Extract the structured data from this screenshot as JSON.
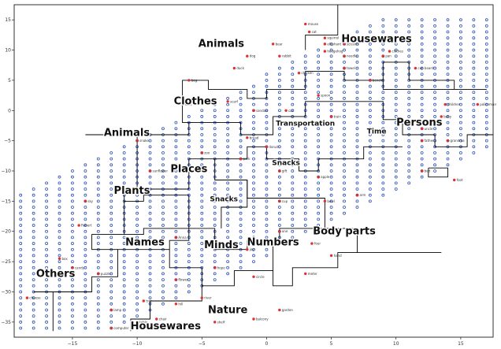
{
  "chart_data": {
    "type": "scatter",
    "xlim": [
      -19.5,
      17.5
    ],
    "ylim": [
      -37.5,
      17.5
    ],
    "x_ticks": [
      -15,
      -10,
      -5,
      0,
      5,
      10,
      15
    ],
    "y_ticks": [
      15,
      10,
      5,
      0,
      -5,
      -10,
      -15,
      -20,
      -25,
      -30,
      -35
    ],
    "grid": false,
    "colors": {
      "word": "#e03030",
      "grid_dot": "#2b4fb5",
      "boundary": "#000000"
    },
    "category_labels": [
      {
        "text": "Animals",
        "x": -3.5,
        "y": 10.5,
        "size": "large"
      },
      {
        "text": "Housewares",
        "x": 8.5,
        "y": 11.3,
        "size": "large"
      },
      {
        "text": "Clothes",
        "x": -5.5,
        "y": 1.0,
        "size": "large"
      },
      {
        "text": "Animals",
        "x": -10.8,
        "y": -4.2,
        "size": "large"
      },
      {
        "text": "Transportation",
        "x": 3.0,
        "y": -2.5,
        "size": "small"
      },
      {
        "text": "Persons",
        "x": 11.8,
        "y": -2.5,
        "size": "large"
      },
      {
        "text": "Time",
        "x": 8.5,
        "y": -3.8,
        "size": "small"
      },
      {
        "text": "Snacks",
        "x": 1.5,
        "y": -9.0,
        "size": "small"
      },
      {
        "text": "Places",
        "x": -6.0,
        "y": -10.2,
        "size": "large"
      },
      {
        "text": "Plants",
        "x": -10.4,
        "y": -13.8,
        "size": "large"
      },
      {
        "text": "Snacks",
        "x": -3.3,
        "y": -15.0,
        "size": "small"
      },
      {
        "text": "Body parts",
        "x": 6.0,
        "y": -20.5,
        "size": "large"
      },
      {
        "text": "Names",
        "x": -9.4,
        "y": -22.3,
        "size": "large"
      },
      {
        "text": "Minds",
        "x": -3.5,
        "y": -22.8,
        "size": "large"
      },
      {
        "text": "Numbers",
        "x": 0.5,
        "y": -22.3,
        "size": "large"
      },
      {
        "text": "Others",
        "x": -16.3,
        "y": -27.5,
        "size": "large"
      },
      {
        "text": "Nature",
        "x": -3.0,
        "y": -33.5,
        "size": "large"
      },
      {
        "text": "Housewares",
        "x": -7.8,
        "y": -36.2,
        "size": "large"
      }
    ],
    "words": [
      {
        "text": "mouse",
        "x": 3.0,
        "y": 14.3
      },
      {
        "text": "cat",
        "x": 3.3,
        "y": 13.0
      },
      {
        "text": "squirrel",
        "x": 4.5,
        "y": 12.0
      },
      {
        "text": "bear",
        "x": 0.5,
        "y": 11.0
      },
      {
        "text": "elephant",
        "x": 4.5,
        "y": 11.0
      },
      {
        "text": "scissors",
        "x": 6.0,
        "y": 11.0
      },
      {
        "text": "clothes",
        "x": 9.5,
        "y": 9.8
      },
      {
        "text": "dog",
        "x": -1.5,
        "y": 9.0
      },
      {
        "text": "rabbit",
        "x": 1.0,
        "y": 9.0
      },
      {
        "text": "hedgehog",
        "x": 4.5,
        "y": 9.8
      },
      {
        "text": "needle",
        "x": 6.0,
        "y": 9.0
      },
      {
        "text": "pan",
        "x": 9.0,
        "y": 9.0
      },
      {
        "text": "duck",
        "x": -2.5,
        "y": 7.0
      },
      {
        "text": "chicken",
        "x": 2.5,
        "y": 6.2
      },
      {
        "text": "towel",
        "x": 6.0,
        "y": 7.0
      },
      {
        "text": "cup board",
        "x": 11.5,
        "y": 7.0
      },
      {
        "text": "bag",
        "x": -6.0,
        "y": 5.0
      },
      {
        "text": "bench",
        "x": 8.0,
        "y": 5.0
      },
      {
        "text": "spoon",
        "x": 4.0,
        "y": 2.5
      },
      {
        "text": "scarf",
        "x": -3.0,
        "y": 1.5
      },
      {
        "text": "children",
        "x": 13.8,
        "y": 1.0
      },
      {
        "text": "policeman",
        "x": 16.3,
        "y": 1.0
      },
      {
        "text": "shirt",
        "x": -6.5,
        "y": 1.0
      },
      {
        "text": "sandals",
        "x": -1.0,
        "y": 0.0
      },
      {
        "text": "car",
        "x": 1.5,
        "y": 0.0
      },
      {
        "text": "train",
        "x": 5.0,
        "y": -1.0
      },
      {
        "text": "baby",
        "x": 13.5,
        "y": -1.0
      },
      {
        "text": "uncle",
        "x": 12.0,
        "y": -3.0
      },
      {
        "text": "father",
        "x": 12.0,
        "y": -5.0
      },
      {
        "text": "grandma",
        "x": 14.0,
        "y": -5.0
      },
      {
        "text": "snake",
        "x": -10.0,
        "y": -5.0
      },
      {
        "text": "donut",
        "x": 0.0,
        "y": -6.0
      },
      {
        "text": "bread",
        "x": -1.5,
        "y": -4.5
      },
      {
        "text": "zoo",
        "x": -5.0,
        "y": -7.0
      },
      {
        "text": "park",
        "x": -2.0,
        "y": -8.0
      },
      {
        "text": "sunflower",
        "x": -9.0,
        "y": -10.0
      },
      {
        "text": "gift",
        "x": 1.0,
        "y": -10.0
      },
      {
        "text": "apple",
        "x": 4.0,
        "y": -11.0
      },
      {
        "text": "bed",
        "x": 12.0,
        "y": -10.0
      },
      {
        "text": "foot",
        "x": 14.5,
        "y": -11.5
      },
      {
        "text": "arm",
        "x": 7.0,
        "y": -14.0
      },
      {
        "text": "cup",
        "x": 1.0,
        "y": -15.0
      },
      {
        "text": "bowl",
        "x": 4.5,
        "y": -15.0
      },
      {
        "text": "sky",
        "x": -14.0,
        "y": -15.0
      },
      {
        "text": "Robert",
        "x": -14.5,
        "y": -19.0
      },
      {
        "text": "Anna",
        "x": -7.0,
        "y": -21.0
      },
      {
        "text": "love",
        "x": -4.0,
        "y": -22.0
      },
      {
        "text": "joy",
        "x": -1.5,
        "y": -23.0
      },
      {
        "text": "one",
        "x": 1.0,
        "y": -20.0
      },
      {
        "text": "four",
        "x": 3.5,
        "y": -22.0
      },
      {
        "text": "hand",
        "x": 5.0,
        "y": -24.0
      },
      {
        "text": "box",
        "x": -16.0,
        "y": -24.5
      },
      {
        "text": "candy",
        "x": -15.0,
        "y": -26.0
      },
      {
        "text": "puzzle",
        "x": -13.0,
        "y": -27.0
      },
      {
        "text": "flower",
        "x": -7.0,
        "y": -28.0
      },
      {
        "text": "hope",
        "x": -4.0,
        "y": -26.0
      },
      {
        "text": "circle",
        "x": -1.0,
        "y": -27.5
      },
      {
        "text": "meter",
        "x": 3.0,
        "y": -27.0
      },
      {
        "text": "river",
        "x": -5.0,
        "y": -31.0
      },
      {
        "text": "tree",
        "x": -9.5,
        "y": -31.5
      },
      {
        "text": "lake",
        "x": -3.5,
        "y": -33.0
      },
      {
        "text": "garden",
        "x": 1.0,
        "y": -33.0
      },
      {
        "text": "cheese",
        "x": -18.5,
        "y": -31.0
      },
      {
        "text": "lamp",
        "x": -12.0,
        "y": -33.0
      },
      {
        "text": "table",
        "x": -10.0,
        "y": -35.0
      },
      {
        "text": "chair",
        "x": -8.5,
        "y": -34.5
      },
      {
        "text": "vase",
        "x": -6.0,
        "y": -36.0
      },
      {
        "text": "shelf",
        "x": -4.0,
        "y": -35.0
      },
      {
        "text": "balcony",
        "x": -1.0,
        "y": -34.5
      },
      {
        "text": "hill",
        "x": -7.0,
        "y": -32.0
      },
      {
        "text": "computer",
        "x": -12.0,
        "y": -36.0
      }
    ],
    "boundaries": [
      [
        [
          -16.5,
          -36.5
        ],
        [
          -16.5,
          -30.0
        ],
        [
          -18.0,
          -30.0
        ]
      ],
      [
        [
          -16.5,
          -30.0
        ],
        [
          -13.5,
          -30.0
        ],
        [
          -13.5,
          -27.5
        ],
        [
          -11.5,
          -27.5
        ],
        [
          -11.5,
          -23.0
        ],
        [
          -13.5,
          -23.0
        ],
        [
          -13.5,
          -20.5
        ],
        [
          -11.0,
          -20.5
        ],
        [
          -11.0,
          -15.0
        ],
        [
          -9.5,
          -15.0
        ],
        [
          -9.5,
          -14.0
        ],
        [
          -6.0,
          -14.0
        ]
      ],
      [
        [
          -11.0,
          -20.5
        ],
        [
          -9.5,
          -20.5
        ],
        [
          -9.5,
          -19.5
        ],
        [
          -6.0,
          -19.5
        ],
        [
          -6.0,
          -21.5
        ],
        [
          -7.5,
          -21.5
        ],
        [
          -7.5,
          -23.0
        ],
        [
          -11.5,
          -23.0
        ]
      ],
      [
        [
          -6.0,
          -14.0
        ],
        [
          -6.0,
          -19.5
        ],
        [
          -4.0,
          -19.5
        ],
        [
          -4.0,
          -23.0
        ],
        [
          -1.5,
          -23.0
        ],
        [
          -1.5,
          -21.5
        ],
        [
          0.5,
          -21.5
        ],
        [
          0.5,
          -26.5
        ],
        [
          -2.5,
          -26.5
        ],
        [
          -2.5,
          -29.0
        ],
        [
          -5.0,
          -29.0
        ],
        [
          -5.0,
          -31.5
        ],
        [
          -9.0,
          -31.5
        ],
        [
          -9.0,
          -34.5
        ],
        [
          -10.5,
          -34.5
        ],
        [
          -10.5,
          -36.5
        ]
      ],
      [
        [
          -7.5,
          -23.0
        ],
        [
          -7.5,
          -26.0
        ],
        [
          -5.0,
          -26.0
        ],
        [
          -5.0,
          -29.0
        ]
      ],
      [
        [
          -14.0,
          -4.0
        ],
        [
          -10.0,
          -4.0
        ],
        [
          -10.0,
          -13.0
        ],
        [
          -11.0,
          -13.0
        ],
        [
          -11.0,
          -15.0
        ]
      ],
      [
        [
          -10.0,
          -4.0
        ],
        [
          -6.0,
          -4.0
        ],
        [
          -6.0,
          -2.0
        ],
        [
          -2.0,
          -2.0
        ],
        [
          -2.0,
          -4.0
        ],
        [
          0.5,
          -4.0
        ],
        [
          0.5,
          -1.0
        ],
        [
          3.0,
          -1.0
        ],
        [
          3.0,
          1.5
        ],
        [
          9.0,
          1.5
        ],
        [
          9.0,
          -1.5
        ],
        [
          10.5,
          -1.5
        ],
        [
          10.5,
          -4.0
        ],
        [
          13.0,
          -4.0
        ],
        [
          13.0,
          -6.0
        ],
        [
          15.5,
          -6.0
        ],
        [
          15.5,
          -4.0
        ],
        [
          17.5,
          -4.0
        ]
      ],
      [
        [
          -6.0,
          -2.0
        ],
        [
          -6.5,
          -2.0
        ],
        [
          -6.5,
          5.0
        ],
        [
          -4.5,
          5.0
        ],
        [
          -4.5,
          3.5
        ],
        [
          -1.5,
          3.5
        ],
        [
          -1.5,
          2.0
        ],
        [
          0.0,
          2.0
        ],
        [
          0.0,
          3.5
        ],
        [
          3.0,
          3.5
        ],
        [
          3.0,
          6.5
        ],
        [
          6.0,
          6.5
        ],
        [
          6.0,
          5.0
        ],
        [
          9.0,
          5.0
        ],
        [
          9.0,
          3.5
        ],
        [
          17.0,
          3.5
        ]
      ],
      [
        [
          -10.0,
          -13.0
        ],
        [
          -6.0,
          -13.0
        ],
        [
          -6.0,
          -8.0
        ],
        [
          -4.0,
          -8.0
        ],
        [
          -4.0,
          -11.5
        ],
        [
          -1.5,
          -11.5
        ],
        [
          -1.5,
          -16.0
        ],
        [
          -3.5,
          -16.0
        ],
        [
          -3.5,
          -19.5
        ]
      ],
      [
        [
          -4.0,
          -8.0
        ],
        [
          -1.5,
          -8.0
        ],
        [
          -1.5,
          -6.0
        ],
        [
          0.0,
          -6.0
        ],
        [
          0.0,
          -8.0
        ],
        [
          2.5,
          -8.0
        ],
        [
          2.5,
          -10.0
        ],
        [
          4.0,
          -10.0
        ],
        [
          4.0,
          -8.0
        ],
        [
          7.5,
          -8.0
        ],
        [
          7.5,
          -6.0
        ],
        [
          10.5,
          -6.0
        ]
      ],
      [
        [
          -1.5,
          -11.5
        ],
        [
          -1.5,
          -14.5
        ],
        [
          4.5,
          -14.5
        ],
        [
          4.5,
          -19.5
        ],
        [
          1.0,
          -19.5
        ],
        [
          1.0,
          -21.5
        ]
      ],
      [
        [
          4.5,
          -19.5
        ],
        [
          7.0,
          -19.5
        ],
        [
          7.0,
          -23.5
        ],
        [
          5.5,
          -23.5
        ],
        [
          5.5,
          -26.0
        ],
        [
          2.0,
          -26.0
        ],
        [
          2.0,
          -29.0
        ],
        [
          0.5,
          -29.0
        ],
        [
          0.5,
          -26.5
        ]
      ],
      [
        [
          7.0,
          -23.5
        ],
        [
          13.5,
          -23.5
        ]
      ],
      [
        [
          3.0,
          10.0
        ],
        [
          3.0,
          12.5
        ],
        [
          5.5,
          12.5
        ],
        [
          5.5,
          17.5
        ]
      ],
      [
        [
          9.0,
          5.0
        ],
        [
          9.0,
          8.0
        ],
        [
          11.0,
          8.0
        ],
        [
          11.0,
          5.0
        ],
        [
          14.5,
          5.0
        ],
        [
          14.5,
          3.5
        ]
      ],
      [
        [
          12.5,
          -9.5
        ],
        [
          12.5,
          -11.0
        ],
        [
          14.0,
          -11.0
        ],
        [
          14.0,
          -9.5
        ],
        [
          12.5,
          -9.5
        ]
      ]
    ]
  }
}
